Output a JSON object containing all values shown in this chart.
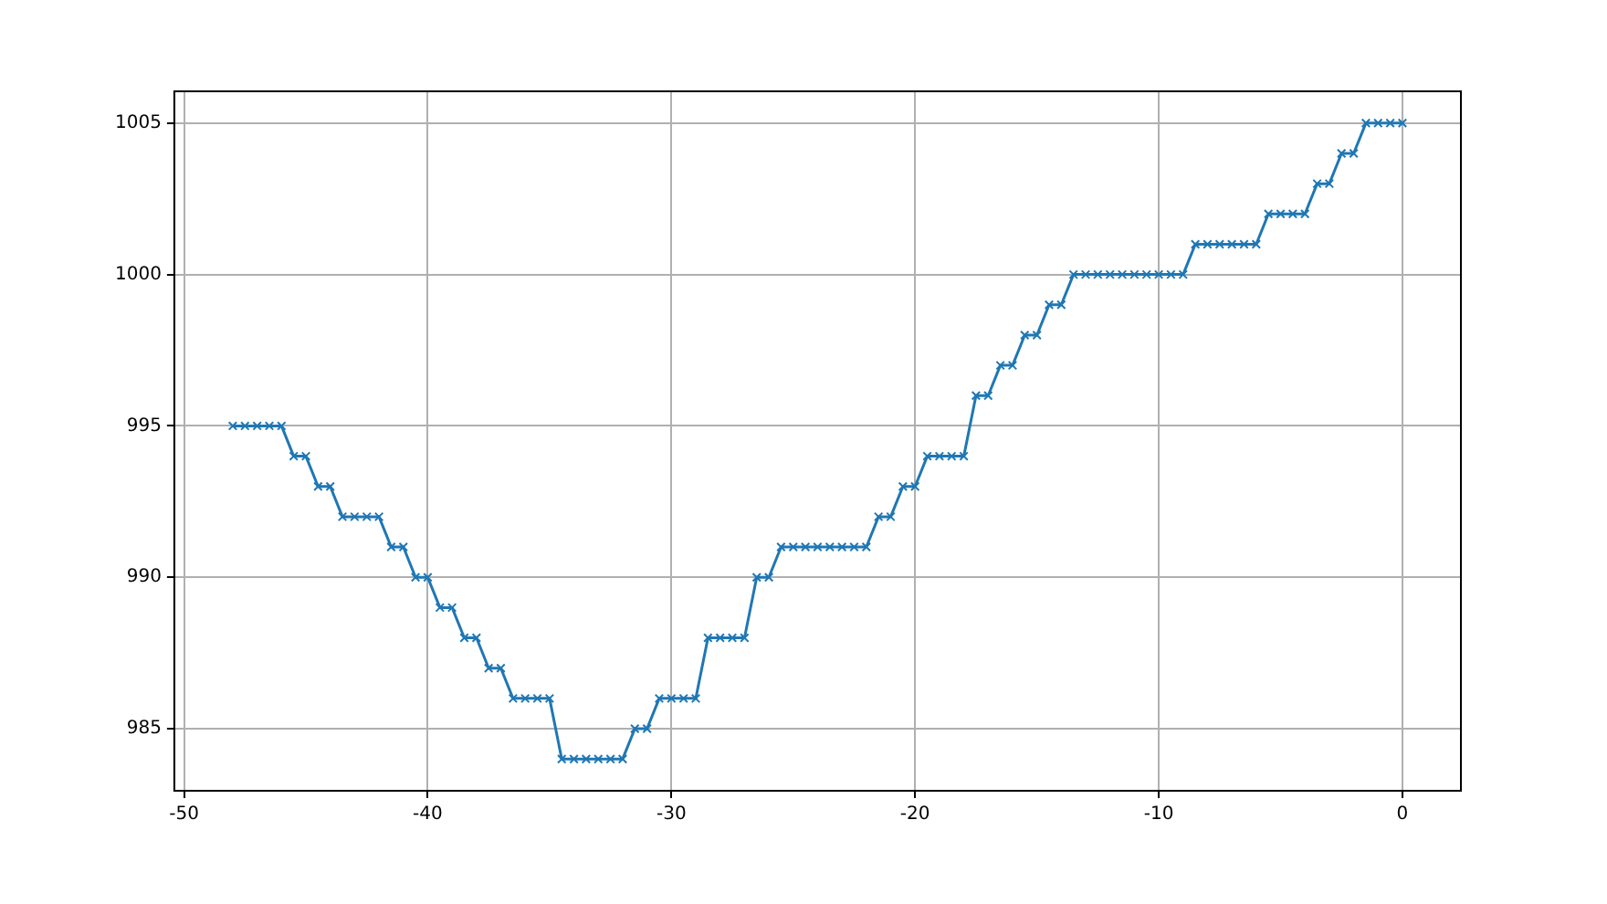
{
  "chart_data": {
    "type": "line",
    "x": [
      -48,
      -47.5,
      -47,
      -46.5,
      -46,
      -45.5,
      -45,
      -44.5,
      -44,
      -43.5,
      -43,
      -42.5,
      -42,
      -41.5,
      -41,
      -40.5,
      -40,
      -39.5,
      -39,
      -38.5,
      -38,
      -37.5,
      -37,
      -36.5,
      -36,
      -35.5,
      -35,
      -34.5,
      -34,
      -33.5,
      -33,
      -32.5,
      -32,
      -31.5,
      -31,
      -30.5,
      -30,
      -29.5,
      -29,
      -28.5,
      -28,
      -27.5,
      -27,
      -26.5,
      -26,
      -25.5,
      -25,
      -24.5,
      -24,
      -23.5,
      -23,
      -22.5,
      -22,
      -21.5,
      -21,
      -20.5,
      -20,
      -19.5,
      -19,
      -18.5,
      -18,
      -17.5,
      -17,
      -16.5,
      -16,
      -15.5,
      -15,
      -14.5,
      -14,
      -13.5,
      -13,
      -12.5,
      -12,
      -11.5,
      -11,
      -10.5,
      -10,
      -9.5,
      -9,
      -8.5,
      -8,
      -7.5,
      -7,
      -6.5,
      -6,
      -5.5,
      -5,
      -4.5,
      -4,
      -3.5,
      -3,
      -2.5,
      -2,
      -1.5,
      -1,
      -0.5,
      0
    ],
    "series": [
      {
        "color": "#1f77b4",
        "values": [
          995,
          995,
          995,
          995,
          995,
          994,
          994,
          993,
          993,
          992,
          992,
          992,
          992,
          991,
          991,
          990,
          990,
          989,
          989,
          988,
          988,
          987,
          987,
          986,
          986,
          986,
          986,
          984,
          984,
          984,
          984,
          984,
          984,
          985,
          985,
          986,
          986,
          986,
          986,
          988,
          988,
          988,
          988,
          990,
          990,
          991,
          991,
          991,
          991,
          991,
          991,
          991,
          991,
          992,
          992,
          993,
          993,
          994,
          994,
          994,
          994,
          996,
          996,
          997,
          997,
          998,
          998,
          999,
          999,
          1000,
          1000,
          1000,
          1000,
          1000,
          1000,
          1000,
          1000,
          1000,
          1000,
          1001,
          1001,
          1001,
          1001,
          1001,
          1001,
          1002,
          1002,
          1002,
          1002,
          1003,
          1003,
          1004,
          1004,
          1005,
          1005,
          1005,
          1005
        ]
      }
    ],
    "xlim": [
      -50.4,
      2.4
    ],
    "ylim": [
      982.95,
      1006.05
    ],
    "xticks": [
      -50,
      -40,
      -30,
      -20,
      -10,
      0
    ],
    "yticks": [
      985,
      990,
      995,
      1000,
      1005
    ],
    "grid": true,
    "marker": "cross",
    "line_style": "solid",
    "legend": false
  }
}
